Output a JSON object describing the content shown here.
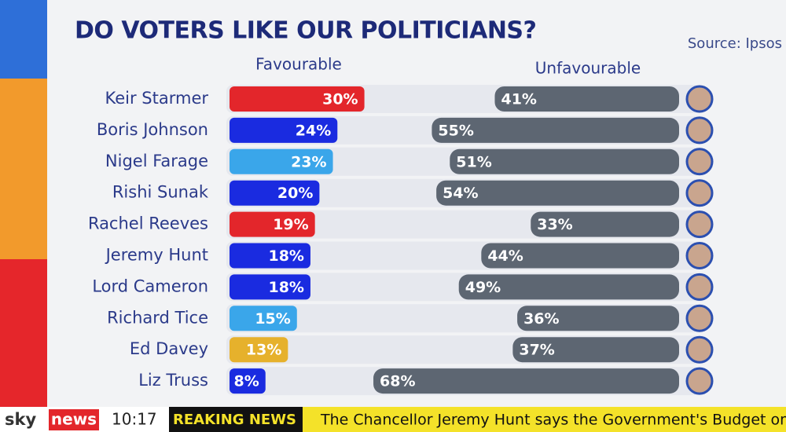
{
  "chart_data": {
    "type": "diverging-bar",
    "title": "DO VOTERS LIKE OUR POLITICIANS?",
    "source": "Source: Ipsos",
    "categories": [
      "Keir Starmer",
      "Boris Johnson",
      "Nigel Farage",
      "Rishi Sunak",
      "Rachel Reeves",
      "Jeremy Hunt",
      "Lord Cameron",
      "Richard Tice",
      "Ed Davey",
      "Liz Truss"
    ],
    "series": [
      {
        "name": "Favourable",
        "values": [
          30,
          24,
          23,
          20,
          19,
          18,
          18,
          15,
          13,
          8
        ],
        "value_labels": [
          "30%",
          "24%",
          "23%",
          "20%",
          "19%",
          "18%",
          "18%",
          "15%",
          "13%",
          "8%"
        ],
        "colors": [
          "#e3262b",
          "#1a2be0",
          "#3aa6ea",
          "#1a2be0",
          "#e3262b",
          "#1a2be0",
          "#1a2be0",
          "#3aa6ea",
          "#e6b12c",
          "#1a2be0"
        ]
      },
      {
        "name": "Unfavourable",
        "values": [
          41,
          55,
          51,
          54,
          33,
          44,
          49,
          36,
          37,
          68
        ],
        "value_labels": [
          "41%",
          "55%",
          "51%",
          "54%",
          "33%",
          "44%",
          "49%",
          "36%",
          "37%",
          "68%"
        ],
        "color": "#5d6672"
      }
    ]
  },
  "ticker": {
    "brand_sky": "sky",
    "brand_news": "news",
    "time": "10:17",
    "label": "REAKING NEWS",
    "headline": "The Chancellor Jeremy Hunt says the Government's Budget on W"
  }
}
